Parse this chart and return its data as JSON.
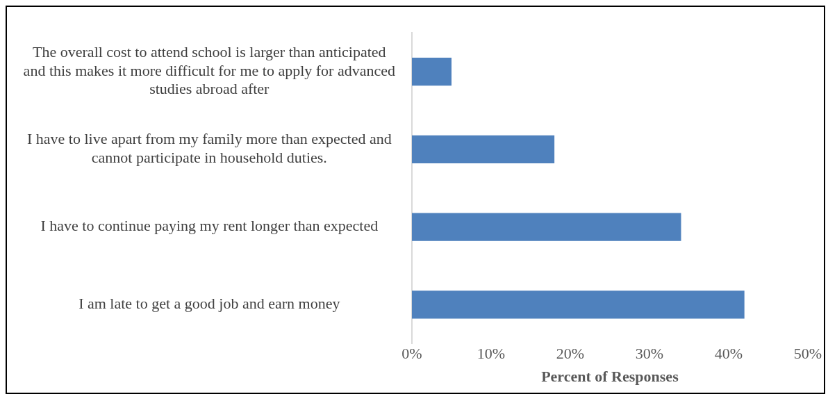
{
  "chart_data": {
    "type": "bar",
    "orientation": "horizontal",
    "categories": [
      "The overall cost to attend school is larger than anticipated and this makes it more difficult for me to apply for advanced studies abroad after",
      "I have to live apart from my family more than expected and cannot participate in household duties.",
      "I have to continue paying my rent longer than expected",
      "I am late to get a good job and earn money"
    ],
    "values": [
      5,
      18,
      34,
      42
    ],
    "color": "#4f81bd",
    "xlabel": "Percent of Responses",
    "xlim": [
      0,
      50
    ],
    "xticks": [
      {
        "value": 0,
        "label": "0%"
      },
      {
        "value": 10,
        "label": "10%"
      },
      {
        "value": 20,
        "label": "20%"
      },
      {
        "value": 30,
        "label": "30%"
      },
      {
        "value": 40,
        "label": "40%"
      },
      {
        "value": 50,
        "label": "50%"
      }
    ],
    "grid": false,
    "legend": false
  }
}
